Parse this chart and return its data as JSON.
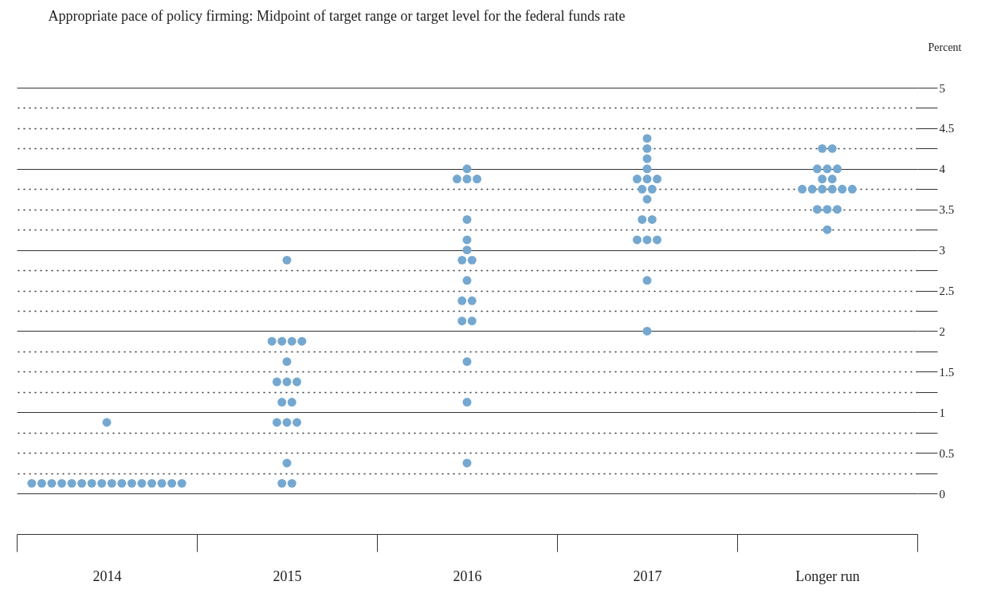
{
  "chart_data": {
    "type": "scatter",
    "title": "Appropriate pace of policy firming: Midpoint of target range or target level for the federal funds rate",
    "ylabel": "Percent",
    "categories": [
      "2014",
      "2015",
      "2016",
      "2017",
      "Longer run"
    ],
    "series": [
      {
        "color": "#75a8d0",
        "values": [
          0.125,
          0.125,
          0.375,
          2.0,
          3.25
        ]
      },
      {
        "color": "#75a8d0",
        "values": [
          0.125,
          0.125,
          1.125,
          2.625,
          3.5
        ]
      },
      {
        "color": "#75a8d0",
        "values": [
          0.125,
          0.375,
          1.625,
          3.125,
          3.5
        ]
      },
      {
        "color": "#75a8d0",
        "values": [
          0.125,
          0.875,
          2.125,
          3.125,
          3.5
        ]
      },
      {
        "color": "#75a8d0",
        "values": [
          0.125,
          0.875,
          2.125,
          3.125,
          3.75
        ]
      },
      {
        "color": "#75a8d0",
        "values": [
          0.125,
          0.875,
          2.375,
          3.375,
          3.75
        ]
      },
      {
        "color": "#75a8d0",
        "values": [
          0.125,
          1.125,
          2.375,
          3.375,
          3.75
        ]
      },
      {
        "color": "#75a8d0",
        "values": [
          0.125,
          1.125,
          2.625,
          3.625,
          3.75
        ]
      },
      {
        "color": "#75a8d0",
        "values": [
          0.125,
          1.375,
          2.875,
          3.75,
          3.75
        ]
      },
      {
        "color": "#75a8d0",
        "values": [
          0.125,
          1.375,
          2.875,
          3.75,
          3.75
        ]
      },
      {
        "color": "#75a8d0",
        "values": [
          0.125,
          1.375,
          3.0,
          3.875,
          3.875
        ]
      },
      {
        "color": "#75a8d0",
        "values": [
          0.125,
          1.625,
          3.125,
          3.875,
          3.875
        ]
      },
      {
        "color": "#75a8d0",
        "values": [
          0.125,
          1.875,
          3.375,
          3.875,
          4.0
        ]
      },
      {
        "color": "#75a8d0",
        "values": [
          0.125,
          1.875,
          3.875,
          4.0,
          4.0
        ]
      },
      {
        "color": "#75a8d0",
        "values": [
          0.125,
          1.875,
          3.875,
          4.125,
          4.0
        ]
      },
      {
        "color": "#75a8d0",
        "values": [
          0.125,
          1.875,
          3.875,
          4.25,
          4.25
        ]
      },
      {
        "color": "#75a8d0",
        "values": [
          0.875,
          2.875,
          4.0,
          4.375,
          4.25
        ]
      }
    ],
    "ylim": [
      -0.5,
      5
    ],
    "yticks": [
      0,
      {
        "value": 0.25,
        "label": null
      },
      0.5,
      {
        "value": 0.75,
        "label": null
      },
      1,
      {
        "value": 1.25,
        "label": null
      },
      1.5,
      {
        "value": 1.75,
        "label": null
      },
      2,
      {
        "value": 2.25,
        "label": null
      },
      2.5,
      {
        "value": 2.75,
        "label": null
      },
      3,
      {
        "value": 3.25,
        "label": null
      },
      3.5,
      {
        "value": 3.75,
        "label": null
      },
      4,
      {
        "value": 4.25,
        "label": null
      },
      4.5,
      {
        "value": 4.75,
        "label": null
      },
      5
    ],
    "grid": "y",
    "marker": "circle"
  }
}
